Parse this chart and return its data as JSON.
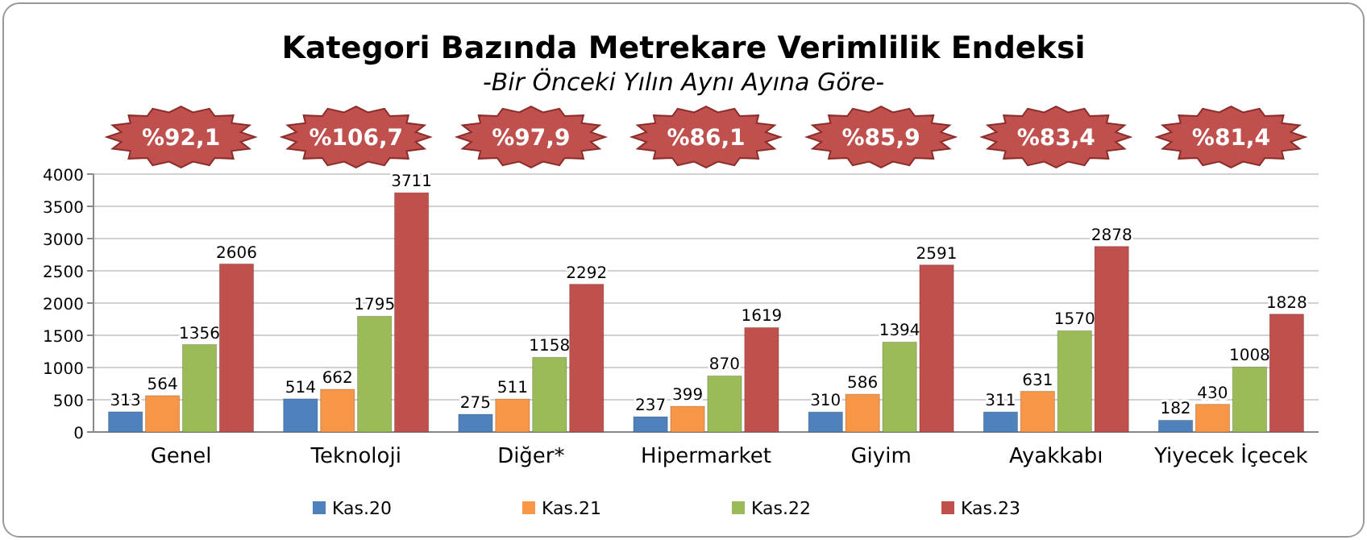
{
  "chart_data": {
    "type": "bar",
    "title": "Kategori Bazında Metrekare Verimlilik Endeksi",
    "subtitle": "-Bir Önceki Yılın Aynı Ayına Göre-",
    "categories": [
      "Genel",
      "Teknoloji",
      "Diğer*",
      "Hipermarket",
      "Giyim",
      "Ayakkabı",
      "Yiyecek İçecek"
    ],
    "series": [
      {
        "name": "Kas.20",
        "color": "#4f81bd",
        "values": [
          313,
          514,
          275,
          237,
          310,
          311,
          182
        ]
      },
      {
        "name": "Kas.21",
        "color": "#f79646",
        "values": [
          564,
          662,
          511,
          399,
          586,
          631,
          430
        ]
      },
      {
        "name": "Kas.22",
        "color": "#9bbb59",
        "values": [
          1356,
          1795,
          1158,
          870,
          1394,
          1570,
          1008
        ]
      },
      {
        "name": "Kas.23",
        "color": "#c0504d",
        "values": [
          2606,
          3711,
          2292,
          1619,
          2591,
          2878,
          1828
        ]
      }
    ],
    "annotations": [
      "%92,1",
      "%106,7",
      "%97,9",
      "%86,1",
      "%85,9",
      "%83,4",
      "%81,4"
    ],
    "ylim": [
      0,
      4000
    ],
    "yticks": [
      0,
      500,
      1000,
      1500,
      2000,
      2500,
      3000,
      3500,
      4000
    ],
    "grid": "y",
    "legend": "bottom",
    "data_labels": true
  }
}
